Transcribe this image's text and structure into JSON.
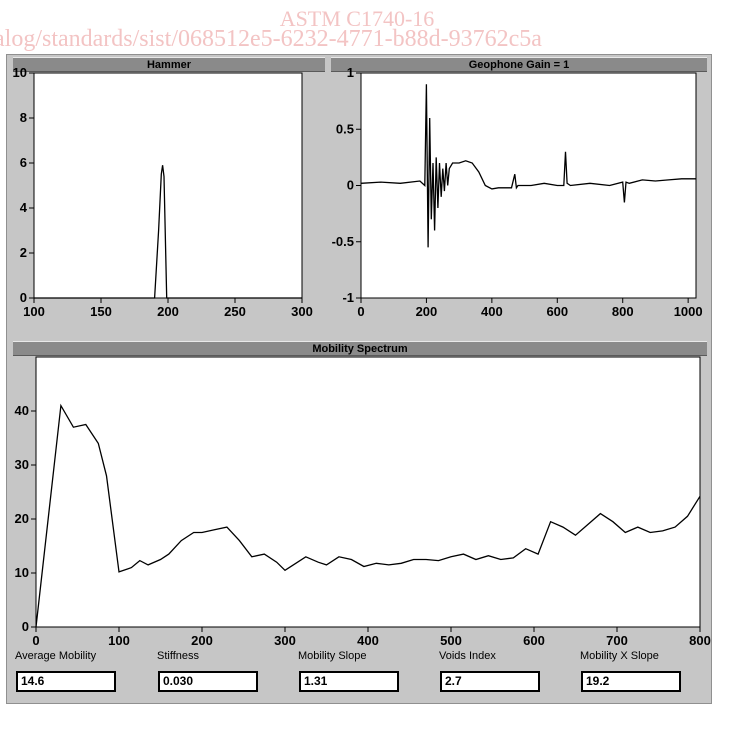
{
  "watermark": {
    "line1": "ASTM C1740-16",
    "line2": "alog/standards/sist/068512e5-6232-4771-b88d-93762c5a"
  },
  "panels": {
    "hammer_title": "Hammer",
    "geophone_title": "Geophone Gain = 1",
    "mobility_title": "Mobility Spectrum"
  },
  "readouts": [
    {
      "label": "Average Mobility",
      "value": "14.6"
    },
    {
      "label": "Stiffness",
      "value": "0.030"
    },
    {
      "label": "Mobility Slope",
      "value": "1.31"
    },
    {
      "label": "Voids Index",
      "value": "2.7"
    },
    {
      "label": "Mobility X Slope",
      "value": "19.2"
    }
  ],
  "chart_data": [
    {
      "type": "line",
      "title": "Hammer",
      "xlim": [
        100,
        300
      ],
      "ylim": [
        0,
        10
      ],
      "x_ticks": [
        "100",
        "150",
        "200",
        "250",
        "300"
      ],
      "y_ticks": [
        "0",
        "2",
        "4",
        "6",
        "8",
        "10"
      ],
      "grid": false,
      "series": [
        {
          "x": [
            100,
            190,
            193,
            195,
            196,
            197,
            199,
            300
          ],
          "y": [
            0,
            0,
            3.0,
            5.5,
            5.9,
            5.4,
            0,
            0
          ]
        }
      ]
    },
    {
      "type": "line",
      "title": "Geophone Gain = 1",
      "xlim": [
        0,
        1024
      ],
      "ylim": [
        -1,
        1
      ],
      "x_ticks": [
        "0",
        "200",
        "400",
        "600",
        "800",
        "1000"
      ],
      "y_ticks": [
        "-1",
        "-0.5",
        "0",
        "0.5",
        "1"
      ],
      "grid": false,
      "series": [
        {
          "x": [
            0,
            60,
            120,
            180,
            195,
            200,
            205,
            210,
            215,
            220,
            225,
            230,
            235,
            240,
            245,
            250,
            255,
            260,
            265,
            270,
            280,
            300,
            320,
            340,
            360,
            380,
            400,
            420,
            460,
            470,
            475,
            480,
            520,
            560,
            600,
            620,
            625,
            630,
            640,
            700,
            760,
            800,
            805,
            810,
            820,
            860,
            900,
            940,
            980,
            1024
          ],
          "y": [
            0.02,
            0.03,
            0.02,
            0.04,
            0.0,
            0.9,
            -0.55,
            0.6,
            -0.3,
            0.2,
            -0.4,
            0.25,
            -0.2,
            0.2,
            -0.1,
            0.15,
            -0.05,
            0.2,
            0.0,
            0.15,
            0.2,
            0.2,
            0.22,
            0.2,
            0.12,
            0.0,
            -0.03,
            -0.02,
            -0.02,
            0.1,
            -0.02,
            0.0,
            0.0,
            0.02,
            0.0,
            0.0,
            0.3,
            0.02,
            0.0,
            0.02,
            0.0,
            0.03,
            -0.15,
            0.03,
            0.02,
            0.05,
            0.04,
            0.05,
            0.06,
            0.06
          ]
        }
      ]
    },
    {
      "type": "line",
      "title": "Mobility Spectrum",
      "xlim": [
        0,
        800
      ],
      "ylim": [
        0,
        50
      ],
      "x_ticks": [
        "0",
        "100",
        "200",
        "300",
        "400",
        "500",
        "600",
        "700",
        "800"
      ],
      "y_ticks": [
        "0",
        "10",
        "20",
        "30",
        "40"
      ],
      "grid": false,
      "series": [
        {
          "x": [
            0,
            30,
            45,
            60,
            75,
            85,
            100,
            115,
            125,
            135,
            150,
            160,
            175,
            190,
            200,
            215,
            230,
            245,
            260,
            275,
            290,
            300,
            310,
            325,
            340,
            350,
            365,
            380,
            395,
            410,
            425,
            440,
            455,
            470,
            485,
            500,
            515,
            530,
            545,
            560,
            575,
            590,
            605,
            620,
            635,
            650,
            665,
            680,
            695,
            710,
            725,
            740,
            755,
            770,
            785,
            800
          ],
          "y": [
            0,
            41,
            37,
            37.5,
            34,
            28,
            10.2,
            11,
            12.3,
            11.5,
            12.5,
            13.5,
            16,
            17.5,
            17.5,
            18,
            18.5,
            16,
            13,
            13.5,
            12,
            10.5,
            11.5,
            13,
            12,
            11.5,
            13,
            12.5,
            11.2,
            11.8,
            11.5,
            11.8,
            12.5,
            12.5,
            12.3,
            13,
            13.5,
            12.5,
            13.2,
            12.5,
            12.8,
            14.5,
            13.5,
            19.5,
            18.5,
            17,
            19,
            21,
            19.5,
            17.5,
            18.5,
            17.5,
            17.8,
            18.5,
            20.5,
            24.2
          ]
        }
      ]
    }
  ]
}
